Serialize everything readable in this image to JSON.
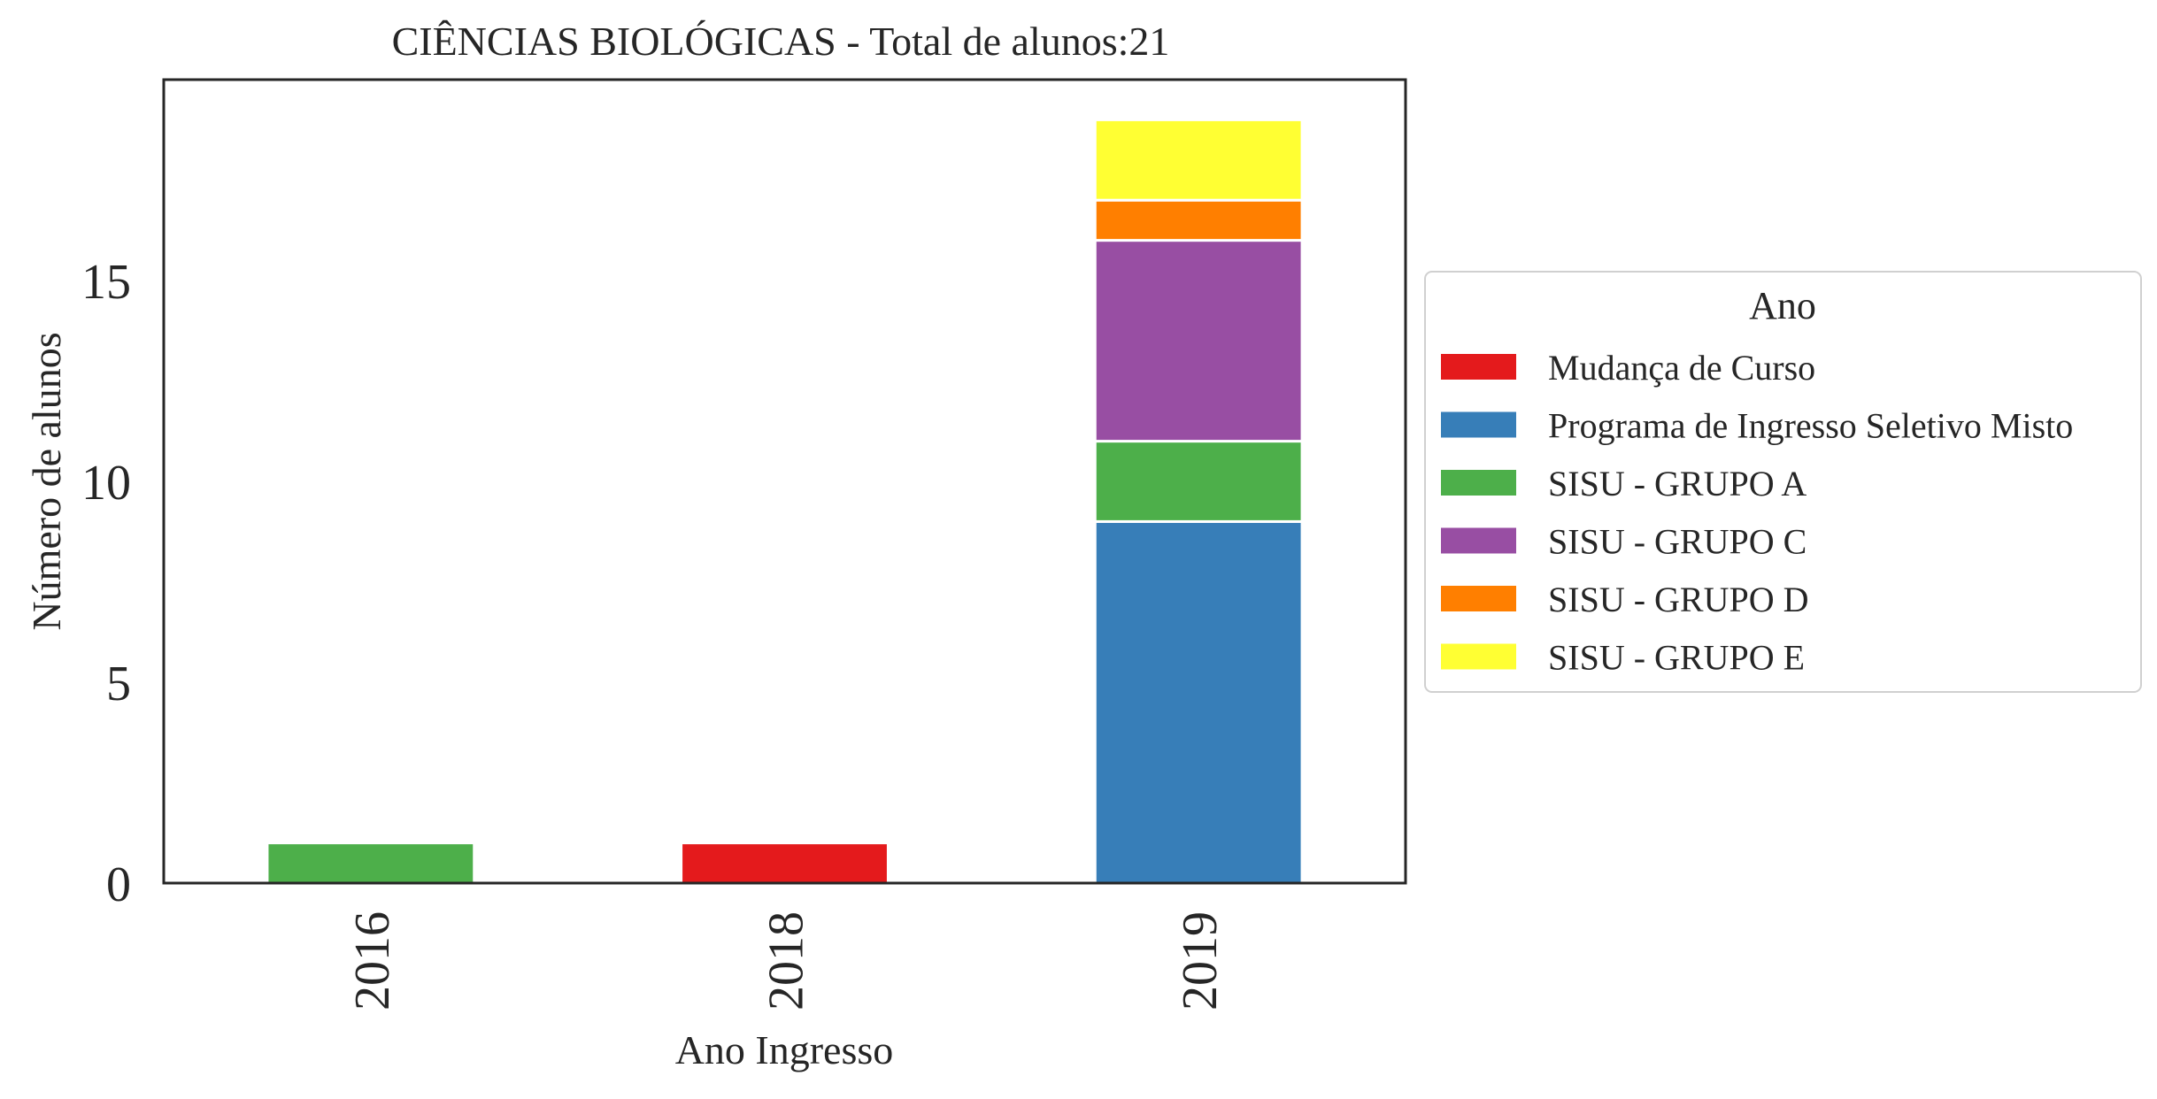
{
  "chart_data": {
    "type": "bar",
    "stacked": true,
    "title": "CIÊNCIAS BIOLÓGICAS - Total de alunos:21",
    "xlabel": "Ano Ingresso",
    "ylabel": "Número de alunos",
    "categories": [
      "2016",
      "2018",
      "2019"
    ],
    "ylim": [
      0,
      20
    ],
    "yticks": [
      0,
      5,
      10,
      15
    ],
    "grid": false,
    "legend": {
      "title": "Ano",
      "placement": "right"
    },
    "series": [
      {
        "name": "Mudança de Curso",
        "color": "#e41a1c",
        "values": [
          0,
          1,
          0
        ]
      },
      {
        "name": "Programa de Ingresso Seletivo Misto",
        "color": "#377eb8",
        "values": [
          0,
          0,
          9
        ]
      },
      {
        "name": "SISU - GRUPO A",
        "color": "#4daf4a",
        "values": [
          1,
          0,
          2
        ]
      },
      {
        "name": "SISU - GRUPO C",
        "color": "#984ea3",
        "values": [
          0,
          0,
          5
        ]
      },
      {
        "name": "SISU - GRUPO D",
        "color": "#ff7f00",
        "values": [
          0,
          0,
          1
        ]
      },
      {
        "name": "SISU - GRUPO E",
        "color": "#ffff33",
        "values": [
          0,
          0,
          2
        ]
      }
    ]
  }
}
